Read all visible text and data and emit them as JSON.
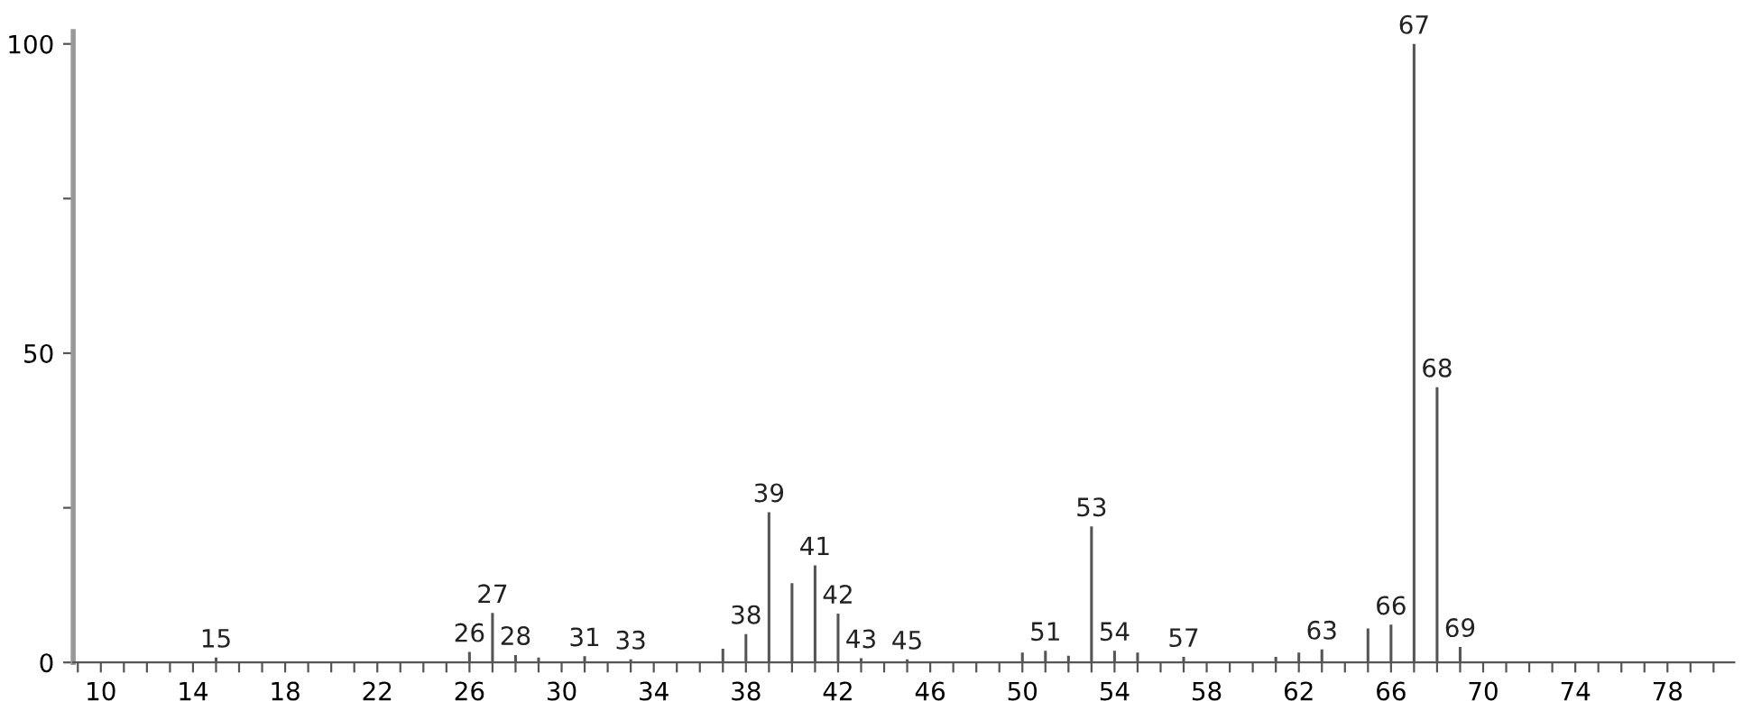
{
  "chart_data": {
    "type": "bar",
    "color": "#555555",
    "x": [
      15,
      26,
      27,
      28,
      29,
      31,
      33,
      37,
      38,
      39,
      40,
      41,
      42,
      43,
      45,
      50,
      51,
      52,
      53,
      54,
      55,
      57,
      61,
      62,
      63,
      65,
      66,
      67,
      68,
      69
    ],
    "values": [
      0.8,
      1.7,
      8.0,
      1.2,
      0.8,
      1.0,
      0.5,
      2.2,
      4.6,
      24.3,
      12.8,
      15.7,
      7.9,
      0.7,
      0.5,
      1.6,
      1.9,
      1.1,
      22.0,
      1.9,
      1.6,
      0.9,
      0.9,
      1.6,
      2.1,
      5.5,
      6.1,
      100,
      44.5,
      2.5
    ],
    "annotations": [
      {
        "text": "15",
        "x": 15,
        "y": 0.8
      },
      {
        "text": "26",
        "x": 26,
        "y": 1.7
      },
      {
        "text": "27",
        "x": 27,
        "y": 8.0
      },
      {
        "text": "28",
        "x": 28,
        "y": 1.2
      },
      {
        "text": "31",
        "x": 31,
        "y": 1.0
      },
      {
        "text": "33",
        "x": 33,
        "y": 0.5
      },
      {
        "text": "38",
        "x": 38,
        "y": 4.6
      },
      {
        "text": "39",
        "x": 39,
        "y": 24.3
      },
      {
        "text": "41",
        "x": 41,
        "y": 15.7
      },
      {
        "text": "42",
        "x": 42,
        "y": 7.9
      },
      {
        "text": "43",
        "x": 43,
        "y": 0.7
      },
      {
        "text": "45",
        "x": 45,
        "y": 0.5
      },
      {
        "text": "51",
        "x": 51,
        "y": 1.9
      },
      {
        "text": "53",
        "x": 53,
        "y": 22.0
      },
      {
        "text": "54",
        "x": 54,
        "y": 1.9
      },
      {
        "text": "57",
        "x": 57,
        "y": 0.9
      },
      {
        "text": "63",
        "x": 63,
        "y": 2.1
      },
      {
        "text": "66",
        "x": 66,
        "y": 6.1
      },
      {
        "text": "67",
        "x": 67,
        "y": 100
      },
      {
        "text": "68",
        "x": 68,
        "y": 44.5
      },
      {
        "text": "69",
        "x": 69,
        "y": 2.5
      }
    ],
    "xlim": [
      8.8,
      80.9
    ],
    "xticks": [
      {
        "value": 9,
        "label": null
      },
      10,
      {
        "value": 11,
        "label": null
      },
      {
        "value": 12,
        "label": null
      },
      {
        "value": 13,
        "label": null
      },
      14,
      {
        "value": 15,
        "label": null
      },
      {
        "value": 16,
        "label": null
      },
      {
        "value": 17,
        "label": null
      },
      18,
      {
        "value": 19,
        "label": null
      },
      {
        "value": 20,
        "label": null
      },
      {
        "value": 21,
        "label": null
      },
      22,
      {
        "value": 23,
        "label": null
      },
      {
        "value": 24,
        "label": null
      },
      {
        "value": 25,
        "label": null
      },
      26,
      {
        "value": 27,
        "label": null
      },
      {
        "value": 28,
        "label": null
      },
      {
        "value": 29,
        "label": null
      },
      30,
      {
        "value": 31,
        "label": null
      },
      {
        "value": 32,
        "label": null
      },
      {
        "value": 33,
        "label": null
      },
      34,
      {
        "value": 35,
        "label": null
      },
      {
        "value": 36,
        "label": null
      },
      {
        "value": 37,
        "label": null
      },
      38,
      {
        "value": 39,
        "label": null
      },
      {
        "value": 40,
        "label": null
      },
      {
        "value": 41,
        "label": null
      },
      42,
      {
        "value": 43,
        "label": null
      },
      {
        "value": 44,
        "label": null
      },
      {
        "value": 45,
        "label": null
      },
      46,
      {
        "value": 47,
        "label": null
      },
      {
        "value": 48,
        "label": null
      },
      {
        "value": 49,
        "label": null
      },
      50,
      {
        "value": 51,
        "label": null
      },
      {
        "value": 52,
        "label": null
      },
      {
        "value": 53,
        "label": null
      },
      54,
      {
        "value": 55,
        "label": null
      },
      {
        "value": 56,
        "label": null
      },
      {
        "value": 57,
        "label": null
      },
      58,
      {
        "value": 59,
        "label": null
      },
      {
        "value": 60,
        "label": null
      },
      {
        "value": 61,
        "label": null
      },
      62,
      {
        "value": 63,
        "label": null
      },
      {
        "value": 64,
        "label": null
      },
      {
        "value": 65,
        "label": null
      },
      66,
      {
        "value": 67,
        "label": null
      },
      {
        "value": 68,
        "label": null
      },
      {
        "value": 69,
        "label": null
      },
      70,
      {
        "value": 71,
        "label": null
      },
      {
        "value": 72,
        "label": null
      },
      {
        "value": 73,
        "label": null
      },
      74,
      {
        "value": 75,
        "label": null
      },
      {
        "value": 76,
        "label": null
      },
      {
        "value": 77,
        "label": null
      },
      78,
      {
        "value": 79,
        "label": null
      },
      {
        "value": 80,
        "label": null
      }
    ],
    "ylim": [
      0,
      102
    ],
    "yticks": [
      0,
      {
        "value": 25,
        "label": null
      },
      50,
      {
        "value": 75,
        "label": null
      },
      100
    ],
    "grid": false
  }
}
